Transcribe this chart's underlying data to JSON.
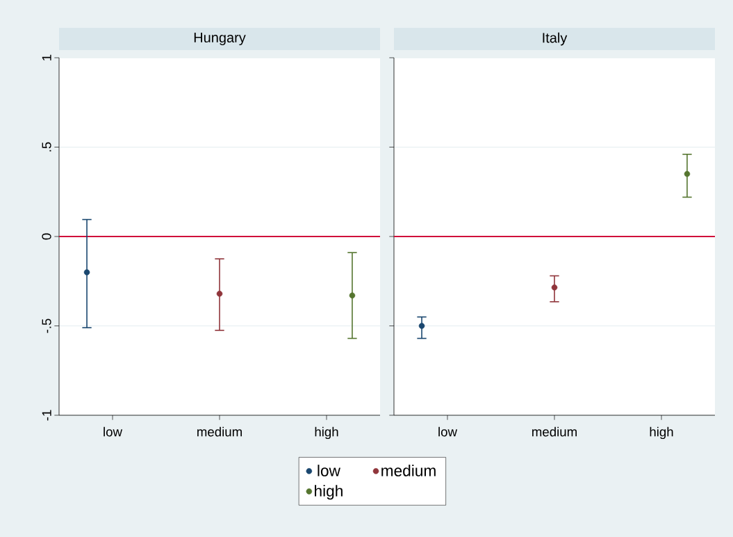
{
  "chart_data": [
    {
      "type": "scatter",
      "title": "Hungary",
      "categories": [
        "low",
        "medium",
        "high"
      ],
      "series": [
        {
          "name": "low",
          "color": "#1a476f",
          "values": [
            -0.2,
            null,
            null
          ],
          "errors": [
            [
              -0.51,
              0.095
            ],
            null,
            null
          ]
        },
        {
          "name": "medium",
          "color": "#90353b",
          "values": [
            null,
            -0.32,
            null
          ],
          "errors": [
            null,
            [
              -0.525,
              -0.125
            ],
            null
          ]
        },
        {
          "name": "high",
          "color": "#55752f",
          "values": [
            null,
            null,
            -0.33
          ],
          "errors": [
            null,
            null,
            [
              -0.57,
              -0.09
            ]
          ]
        }
      ],
      "ylim": [
        -1,
        1
      ],
      "yticks": [
        1,
        {
          "value": 0.5,
          "label": ".5"
        },
        0,
        {
          "value": -0.5,
          "label": "-.5"
        },
        -1
      ],
      "grid": "y",
      "ref_lines": [
        {
          "axis": "y",
          "value": 0,
          "color": "#d0103a"
        }
      ],
      "marker": "circle",
      "legend": "bottom"
    },
    {
      "type": "scatter",
      "title": "Italy",
      "categories": [
        "low",
        "medium",
        "high"
      ],
      "series": [
        {
          "color": "#1a476f",
          "values": [
            -0.5,
            null,
            null
          ],
          "errors": [
            [
              -0.57,
              -0.45
            ],
            null,
            null
          ]
        },
        {
          "color": "#90353b",
          "values": [
            null,
            -0.285,
            null
          ],
          "errors": [
            null,
            [
              -0.365,
              -0.22
            ],
            null
          ]
        },
        {
          "color": "#55752f",
          "values": [
            null,
            null,
            0.35
          ],
          "errors": [
            null,
            null,
            [
              0.22,
              0.46
            ]
          ]
        }
      ],
      "ylim": [
        -1,
        1
      ],
      "yticks": [
        1,
        0.5,
        0,
        -0.5,
        -1
      ],
      "grid": "y",
      "ref_lines": [
        {
          "axis": "y",
          "value": 0,
          "color": "#d0103a"
        }
      ],
      "marker": "circle",
      "tick_labels": "x"
    }
  ]
}
